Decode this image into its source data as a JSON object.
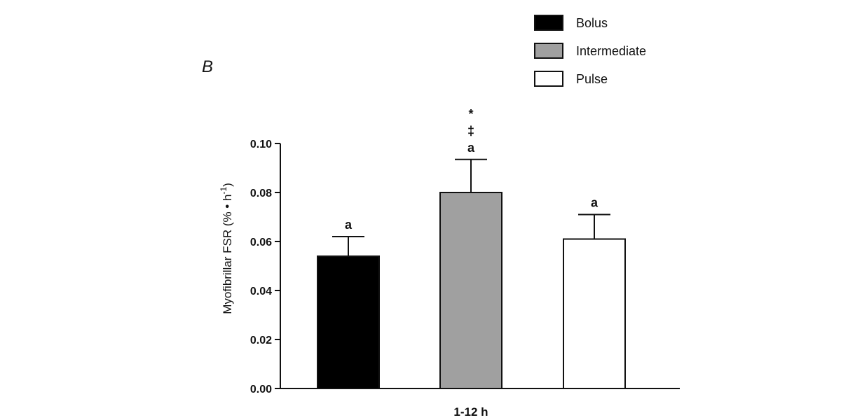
{
  "chart_data": {
    "type": "bar",
    "panel_label": "B",
    "categories": [
      "Bolus",
      "Intermediate",
      "Pulse"
    ],
    "values": [
      0.054,
      0.08,
      0.061
    ],
    "errors": [
      0.008,
      0.0135,
      0.01
    ],
    "colors": [
      "#000000",
      "#a0a0a0",
      "#ffffff"
    ],
    "xlabel": "1-12 h",
    "ylabel_main": "Myofibrillar FSR (% ",
    "ylabel_dot": "•",
    "ylabel_unit": " h",
    "ylabel_sup": "-1",
    "ylabel_close": ")",
    "ylim": [
      0,
      0.1
    ],
    "yticks": [
      "0.00",
      "0.02",
      "0.04",
      "0.06",
      "0.08",
      "0.10"
    ],
    "annotations": [
      {
        "category": "Bolus",
        "lines": [
          "a"
        ]
      },
      {
        "category": "Intermediate",
        "lines": [
          "*",
          "‡",
          "a"
        ]
      },
      {
        "category": "Pulse",
        "lines": [
          "a"
        ]
      }
    ],
    "legend": [
      {
        "label": "Bolus",
        "color": "#000000"
      },
      {
        "label": "Intermediate",
        "color": "#a0a0a0"
      },
      {
        "label": "Pulse",
        "color": "#ffffff"
      }
    ]
  }
}
